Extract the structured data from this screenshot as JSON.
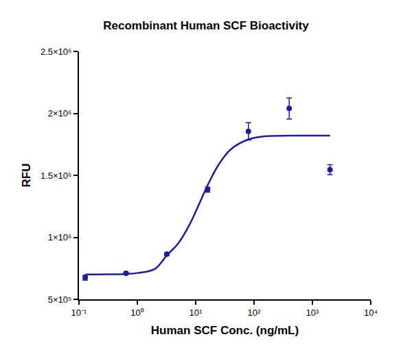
{
  "chart_data": {
    "type": "scatter",
    "title": "Recombinant Human SCF Bioactivity",
    "x_label": "Human SCF Conc. (ng/mL)",
    "y_label": "RFU",
    "log": "x",
    "grid": false,
    "xlim": [
      0.1,
      10000
    ],
    "xticks": [
      {
        "value": 0.1,
        "label": "10⁻¹"
      },
      {
        "value": 1,
        "label": "10⁰"
      },
      {
        "value": 10,
        "label": "10¹"
      },
      {
        "value": 100,
        "label": "10²"
      },
      {
        "value": 1000,
        "label": "10³"
      },
      {
        "value": 10000,
        "label": "10⁴"
      }
    ],
    "ylim": [
      500000,
      2500000
    ],
    "yticks": [
      {
        "value": 500000,
        "label": "5×10⁵"
      },
      {
        "value": 1000000,
        "label": "1×10⁶"
      },
      {
        "value": 1500000,
        "label": "1.5×10⁶"
      },
      {
        "value": 2000000,
        "label": "2×10⁶"
      },
      {
        "value": 2500000,
        "label": "2.5×10⁶"
      }
    ],
    "series": [
      {
        "type": "scatter",
        "color": "#1c1c9e",
        "marker": "circle",
        "x": [
          0.128,
          0.64,
          3.2,
          16,
          80,
          400,
          2000
        ],
        "values": [
          675000,
          710000,
          865000,
          1385000,
          1855000,
          2040000,
          1545000
        ],
        "error": [
          20000,
          8000,
          10000,
          20000,
          70000,
          85000,
          40000
        ]
      },
      {
        "type": "line",
        "color": "#1c1c9e",
        "line_style": "solid",
        "x": [
          0.128,
          0.3,
          0.64,
          1,
          2,
          3.2,
          5,
          8,
          12,
          16,
          25,
          40,
          80,
          150,
          400,
          2000
        ],
        "values": [
          700000,
          701000,
          705000,
          712000,
          745000,
          855000,
          950000,
          1110000,
          1290000,
          1420000,
          1590000,
          1710000,
          1790000,
          1815000,
          1820000,
          1820000
        ]
      }
    ]
  }
}
